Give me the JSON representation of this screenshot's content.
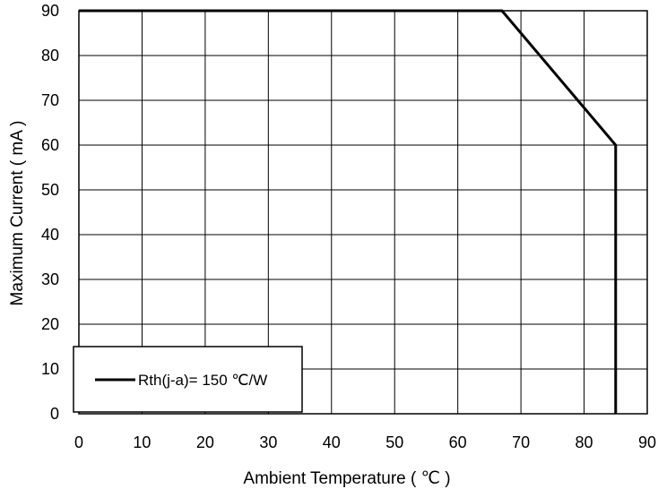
{
  "chart_data": {
    "type": "line",
    "title": "",
    "xlabel": "Ambient Temperature ( ℃ )",
    "ylabel": "Maximum Current ( mA )",
    "xlim": [
      0,
      90
    ],
    "ylim": [
      0,
      90
    ],
    "x_ticks": [
      0,
      10,
      20,
      30,
      40,
      50,
      60,
      70,
      80,
      90
    ],
    "y_ticks": [
      0,
      10,
      20,
      30,
      40,
      50,
      60,
      70,
      80,
      90
    ],
    "grid": true,
    "legend_position": "bottom-left",
    "series": [
      {
        "name": "Rth(j-a)= 150 ℃/W",
        "color": "#000000",
        "x": [
          0,
          67,
          85,
          85
        ],
        "y": [
          90,
          90,
          60,
          0
        ]
      }
    ]
  }
}
